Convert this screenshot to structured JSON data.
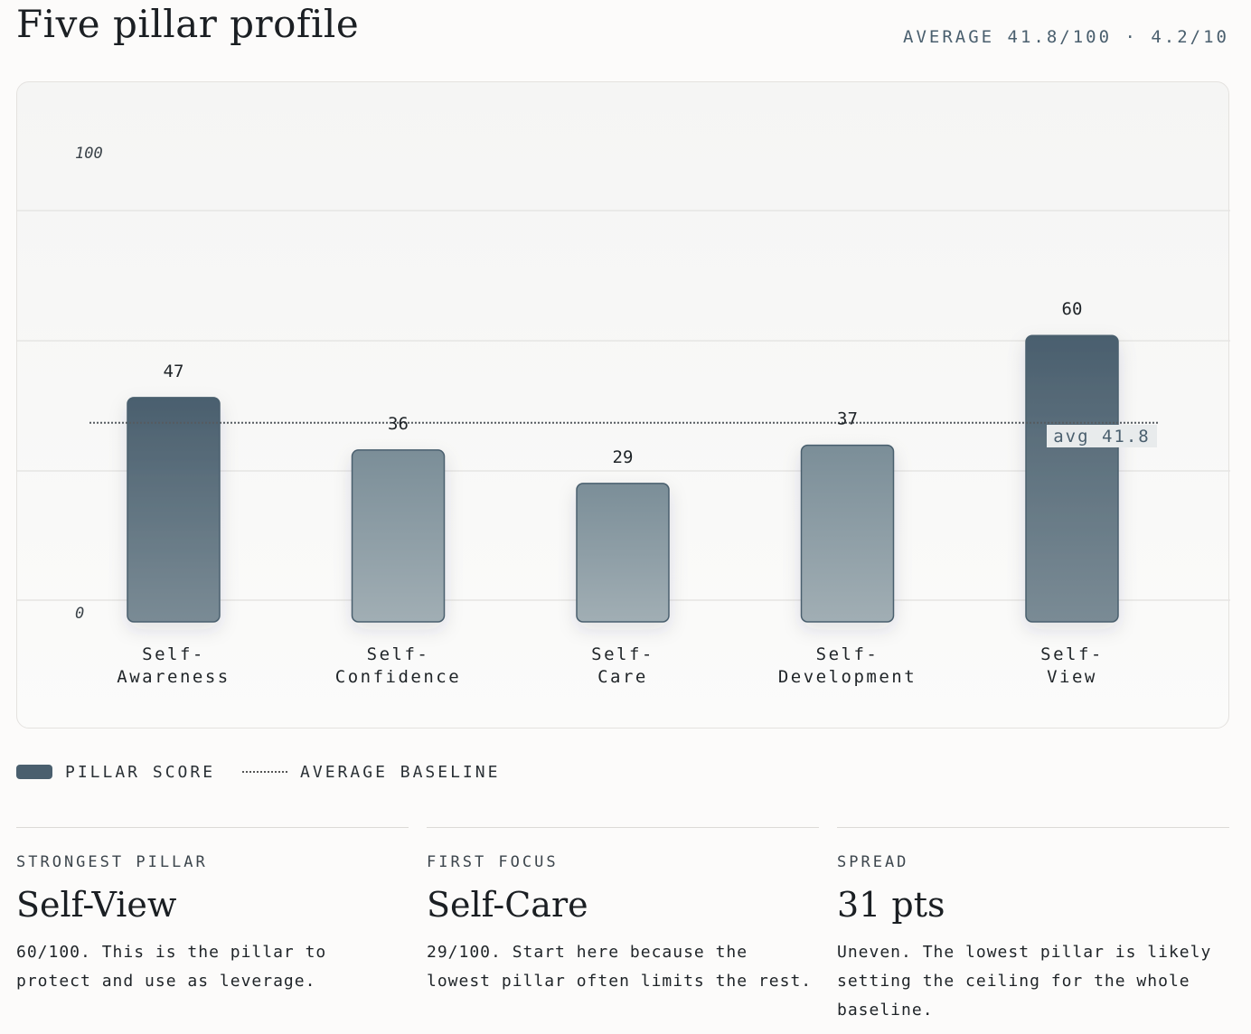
{
  "header": {
    "title": "Five pillar profile",
    "average_summary": "AVERAGE 41.8/100 · 4.2/10"
  },
  "chart_data": {
    "type": "bar",
    "categories": [
      "Self-Awareness",
      "Self-Confidence",
      "Self-Care",
      "Self-Development",
      "Self-View"
    ],
    "category_lines": [
      [
        "Self-",
        "Awareness"
      ],
      [
        "Self-",
        "Confidence"
      ],
      [
        "Self-",
        "Care"
      ],
      [
        "Self-",
        "Development"
      ],
      [
        "Self-",
        "View"
      ]
    ],
    "values": [
      47,
      36,
      29,
      37,
      60
    ],
    "value_labels": [
      "47",
      "36",
      "29",
      "37",
      "60"
    ],
    "ylim": [
      0,
      100
    ],
    "y_ticks": [
      "100",
      "0"
    ],
    "average": 41.8,
    "average_label": "avg 41.8",
    "grid": true,
    "colors": {
      "strong": "#4a5f6e",
      "light": "#7d8f99",
      "baseline": "#555b60"
    }
  },
  "legend": {
    "bar_label": "PILLAR SCORE",
    "line_label": "AVERAGE BASELINE"
  },
  "cards": [
    {
      "label": "STRONGEST PILLAR",
      "value": "Self-View",
      "desc": "60/100. This is the pillar to protect and use as leverage."
    },
    {
      "label": "FIRST FOCUS",
      "value": "Self-Care",
      "desc": "29/100. Start here because the lowest pillar often limits the rest."
    },
    {
      "label": "SPREAD",
      "value": "31 pts",
      "desc": "Uneven. The lowest pillar is likely setting the ceiling for the whole baseline."
    }
  ]
}
